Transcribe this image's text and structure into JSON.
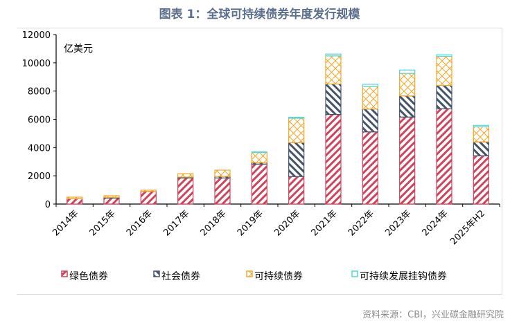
{
  "title": "图表 1：全球可持续债券年度发行规模",
  "source": "资料来源：CBI，兴业碳金融研究院",
  "chart_data": {
    "type": "bar",
    "stacked": true,
    "title": "图表 1：全球可持续债券年度发行规模",
    "unit_label": "亿美元",
    "categories": [
      "2014年",
      "2015年",
      "2016年",
      "2017年",
      "2018年",
      "2019年",
      "2020年",
      "2021年",
      "2022年",
      "2023年",
      "2024年",
      "2025年H2"
    ],
    "ylim": [
      0,
      12000
    ],
    "yticks": [
      0,
      2000,
      4000,
      6000,
      8000,
      10000,
      12000
    ],
    "grid": false,
    "legend_position": "bottom",
    "series": [
      {
        "name": "绿色债券",
        "color": "#d0435a",
        "pattern": "diagonal-down",
        "values": [
          380,
          450,
          900,
          1850,
          1850,
          2830,
          1950,
          6340,
          5110,
          6160,
          6750,
          3420
        ]
      },
      {
        "name": "社会债券",
        "color": "#44546a",
        "pattern": "diagonal-up",
        "values": [
          0,
          20,
          0,
          60,
          110,
          110,
          2400,
          2160,
          1620,
          1500,
          1650,
          980
        ]
      },
      {
        "name": "可持续债券",
        "color": "#f5a623",
        "pattern": "crosshatch",
        "values": [
          110,
          120,
          80,
          240,
          440,
          740,
          1730,
          1990,
          1590,
          1590,
          2060,
          1080
        ]
      },
      {
        "name": "可持续发展挂钩债券",
        "color": "#4fd8d8",
        "pattern": "solid-outline",
        "values": [
          0,
          0,
          0,
          0,
          0,
          10,
          60,
          130,
          160,
          240,
          110,
          90
        ]
      }
    ]
  }
}
